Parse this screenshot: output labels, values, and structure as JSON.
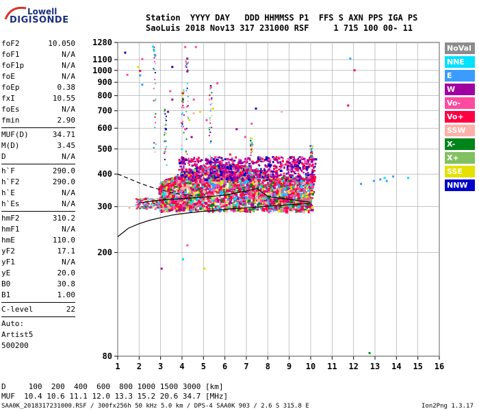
{
  "logo": {
    "line1": "Lowell",
    "line2": "DIGISONDE"
  },
  "header": {
    "line1": "Station  YYYY DAY   DDD HHMMSS P1  FFS S AXN PPS IGA PS",
    "line2": "SaoLuis 2018 Nov13 317 231000 RSF     1 715 100 00- 11"
  },
  "params": [
    {
      "group": [
        {
          "k": "foF2",
          "v": "10.050"
        },
        {
          "k": "foF1",
          "v": "N/A"
        },
        {
          "k": "foF1p",
          "v": "N/A"
        },
        {
          "k": "foE",
          "v": "N/A"
        },
        {
          "k": "foEp",
          "v": "0.38"
        },
        {
          "k": "fxI",
          "v": "10.55"
        },
        {
          "k": "foEs",
          "v": "N/A"
        },
        {
          "k": "fmin",
          "v": "2.90"
        }
      ]
    },
    {
      "group": [
        {
          "k": "MUF(D)",
          "v": "34.71"
        },
        {
          "k": "M(D)",
          "v": "3.45"
        },
        {
          "k": "D",
          "v": "N/A"
        }
      ]
    },
    {
      "group": [
        {
          "k": "h`F",
          "v": "290.0"
        },
        {
          "k": "h`F2",
          "v": "290.0"
        },
        {
          "k": "h`E",
          "v": "N/A"
        },
        {
          "k": "h`Es",
          "v": "N/A"
        }
      ]
    },
    {
      "group": [
        {
          "k": "hmF2",
          "v": "310.2"
        },
        {
          "k": "hmF1",
          "v": "N/A"
        },
        {
          "k": "hmE",
          "v": "110.0"
        },
        {
          "k": "yF2",
          "v": "17.1"
        },
        {
          "k": "yF1",
          "v": "N/A"
        },
        {
          "k": "yE",
          "v": "20.0"
        },
        {
          "k": "B0",
          "v": "30.8"
        },
        {
          "k": "B1",
          "v": "1.00"
        }
      ]
    },
    {
      "group": [
        {
          "k": "C-level",
          "v": "22"
        }
      ]
    }
  ],
  "auto": {
    "line1": "Auto:",
    "line2": "Artist5",
    "line3": "500200"
  },
  "legend": [
    {
      "label": "NoVal",
      "color": "#8c8c8c"
    },
    {
      "label": "NNE",
      "color": "#00e0ff"
    },
    {
      "label": "E",
      "color": "#3a9cff"
    },
    {
      "label": "W",
      "color": "#a000a0"
    },
    {
      "label": "Vo-",
      "color": "#ff4aa0"
    },
    {
      "label": "Vo+",
      "color": "#ff0044"
    },
    {
      "label": "SSW",
      "color": "#ffb0a8"
    },
    {
      "label": "X-",
      "color": "#00841a"
    },
    {
      "label": "X+",
      "color": "#80c060"
    },
    {
      "label": "SSE",
      "color": "#e4e000"
    },
    {
      "label": "NNW",
      "color": "#0000c8"
    }
  ],
  "footer": {
    "d_row": "D     100  200  400  600  800 1000 1500 3000 [km]",
    "muf_row": "MUF  10.4 10.6 11.1 12.0 13.3 15.2 20.6 34.7 [MHz]",
    "file_info": "SAA0K_2018317231000.RSF / 300fx256h 50 kHz 5.0 km / DPS-4 SAA0K 903 / 2.6 S 315.8 E",
    "version": "Ion2Png 1.3.17"
  },
  "chart_data": {
    "type": "scatter",
    "xlabel": "",
    "ylabel": "",
    "xlim": [
      1,
      16
    ],
    "ylim": [
      80,
      1280
    ],
    "y_scale": "log",
    "x_ticks": [
      1,
      2,
      3,
      4,
      5,
      6,
      7,
      8,
      9,
      10,
      11,
      12,
      13,
      14,
      15,
      16
    ],
    "y_ticks": [
      80,
      200,
      300,
      400,
      500,
      600,
      700,
      800,
      900,
      1000,
      1100,
      1280
    ],
    "grid": true,
    "trace_main": {
      "x": [
        1.0,
        1.5,
        2.0,
        2.5,
        3.0,
        3.5,
        4.0,
        4.5,
        5.0,
        5.5,
        6.0,
        6.5,
        7.0,
        7.5,
        8.0,
        8.5,
        9.0,
        9.5,
        10.0
      ],
      "y": [
        230,
        248,
        258,
        266,
        272,
        278,
        282,
        285,
        288,
        290,
        293,
        295,
        297,
        299,
        301,
        303,
        305,
        307,
        309
      ]
    },
    "trace_dashed": {
      "x": [
        1.0,
        1.5,
        2.0,
        2.5,
        3.0,
        3.5,
        4.0,
        4.5
      ],
      "y": [
        400,
        385,
        370,
        358,
        348,
        340,
        334,
        330
      ]
    },
    "trace_profile": {
      "x": [
        2.0,
        3.0,
        4.0,
        5.0,
        6.0,
        7.0,
        7.5,
        8.0,
        9.0,
        10.0
      ],
      "y": [
        310,
        318,
        322,
        326,
        332,
        345,
        352,
        328,
        320,
        312
      ]
    },
    "cluster": {
      "x_start": 2.9,
      "x_end": 10.05,
      "y_low": 290,
      "y_high": 440
    },
    "cluster_upper": {
      "x_start": 3.8,
      "x_end": 10.2,
      "y_low": 380,
      "y_high": 470
    },
    "outliers": [
      {
        "x": 1.3,
        "y": 1180,
        "c": "#0000c8"
      },
      {
        "x": 1.4,
        "y": 970,
        "c": "#ff4aa0"
      },
      {
        "x": 1.9,
        "y": 1040,
        "c": "#e4e000"
      },
      {
        "x": 2.0,
        "y": 1005,
        "c": "#ff0044"
      },
      {
        "x": 2.0,
        "y": 965,
        "c": "#3a9cff"
      },
      {
        "x": 2.1,
        "y": 890,
        "c": "#3a9cff"
      },
      {
        "x": 2.6,
        "y": 1245,
        "c": "#00e0ff"
      },
      {
        "x": 2.65,
        "y": 1200,
        "c": "#00e0ff"
      },
      {
        "x": 2.7,
        "y": 1150,
        "c": "#3a9cff"
      },
      {
        "x": 3.4,
        "y": 840,
        "c": "#ff4aa0"
      },
      {
        "x": 3.5,
        "y": 1040,
        "c": "#0000c8"
      },
      {
        "x": 4.1,
        "y": 1240,
        "c": "#ff4aa0"
      },
      {
        "x": 4.2,
        "y": 1120,
        "c": "#a000a0"
      },
      {
        "x": 4.2,
        "y": 1000,
        "c": "#a000a0"
      },
      {
        "x": 4.6,
        "y": 1240,
        "c": "#ff4aa0"
      },
      {
        "x": 4.0,
        "y": 780,
        "c": "#00841a"
      },
      {
        "x": 4.3,
        "y": 650,
        "c": "#e4e000"
      },
      {
        "x": 4.5,
        "y": 690,
        "c": "#ffb0a8"
      },
      {
        "x": 4.8,
        "y": 700,
        "c": "#e4e000"
      },
      {
        "x": 5.1,
        "y": 650,
        "c": "#ff4aa0"
      },
      {
        "x": 5.3,
        "y": 870,
        "c": "#ff4aa0"
      },
      {
        "x": 5.4,
        "y": 720,
        "c": "#e4e000"
      },
      {
        "x": 4.4,
        "y": 560,
        "c": "#a000a0"
      },
      {
        "x": 4.1,
        "y": 600,
        "c": "#ff4aa0"
      },
      {
        "x": 3.5,
        "y": 780,
        "c": "#a000a0"
      },
      {
        "x": 3.3,
        "y": 700,
        "c": "#a000a0"
      },
      {
        "x": 3.2,
        "y": 600,
        "c": "#0000c8"
      },
      {
        "x": 6.5,
        "y": 600,
        "c": "#a000a0"
      },
      {
        "x": 6.9,
        "y": 560,
        "c": "#ff4aa0"
      },
      {
        "x": 7.2,
        "y": 630,
        "c": "#ff4aa0"
      },
      {
        "x": 7.4,
        "y": 720,
        "c": "#0000c8"
      },
      {
        "x": 8.6,
        "y": 700,
        "c": "#ffb0a8"
      },
      {
        "x": 11.8,
        "y": 1120,
        "c": "#3a9cff"
      },
      {
        "x": 12.0,
        "y": 1010,
        "c": "#ff0044"
      },
      {
        "x": 11.7,
        "y": 740,
        "c": "#ff0044"
      },
      {
        "x": 12.3,
        "y": 370,
        "c": "#3a9cff"
      },
      {
        "x": 13.2,
        "y": 385,
        "c": "#3a9cff"
      },
      {
        "x": 13.4,
        "y": 390,
        "c": "#00e0ff"
      },
      {
        "x": 13.5,
        "y": 380,
        "c": "#3a9cff"
      },
      {
        "x": 13.8,
        "y": 395,
        "c": "#3a9cff"
      },
      {
        "x": 14.5,
        "y": 390,
        "c": "#00e0ff"
      },
      {
        "x": 12.9,
        "y": 380,
        "c": "#3a9cff"
      },
      {
        "x": 12.7,
        "y": 83,
        "c": "#00841a"
      },
      {
        "x": 4.0,
        "y": 190,
        "c": "#00e0ff"
      },
      {
        "x": 4.2,
        "y": 215,
        "c": "#ff4aa0"
      },
      {
        "x": 5.0,
        "y": 175,
        "c": "#e4e000"
      },
      {
        "x": 3.0,
        "y": 175,
        "c": "#a000a0"
      },
      {
        "x": 2.1,
        "y": 1115,
        "c": "#ff4aa0"
      },
      {
        "x": 5.6,
        "y": 900,
        "c": "#ff4aa0"
      },
      {
        "x": 4.5,
        "y": 780,
        "c": "#ff4aa0"
      },
      {
        "x": 6.2,
        "y": 480,
        "c": "#ff0044"
      },
      {
        "x": 1.5,
        "y": 300,
        "c": "#ffb0a8"
      }
    ]
  }
}
